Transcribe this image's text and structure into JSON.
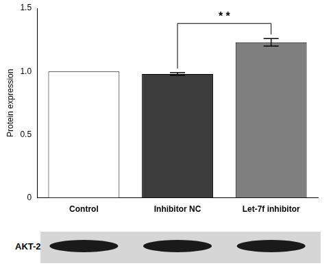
{
  "chart_data": {
    "type": "bar",
    "y_label": "Protein expression",
    "categories": [
      "Control",
      "Inhibitor NC",
      "Let-7f inhibitor"
    ],
    "values": [
      1.0,
      0.98,
      1.23
    ],
    "errors": [
      0,
      0.01,
      0.03
    ],
    "colors": [
      "#ffffff",
      "#3c3c3c",
      "#7f7f7f"
    ],
    "ylim": [
      0,
      1.5
    ],
    "yticks": [
      0,
      0.5,
      {
        "value": 1,
        "label": "1.0"
      },
      1.5
    ],
    "grid": false,
    "annotations": [
      {
        "text": "* *",
        "between": [
          "Inhibitor NC",
          "Let-7f inhibitor"
        ]
      }
    ],
    "blot": {
      "label": "AKT-2"
    }
  }
}
